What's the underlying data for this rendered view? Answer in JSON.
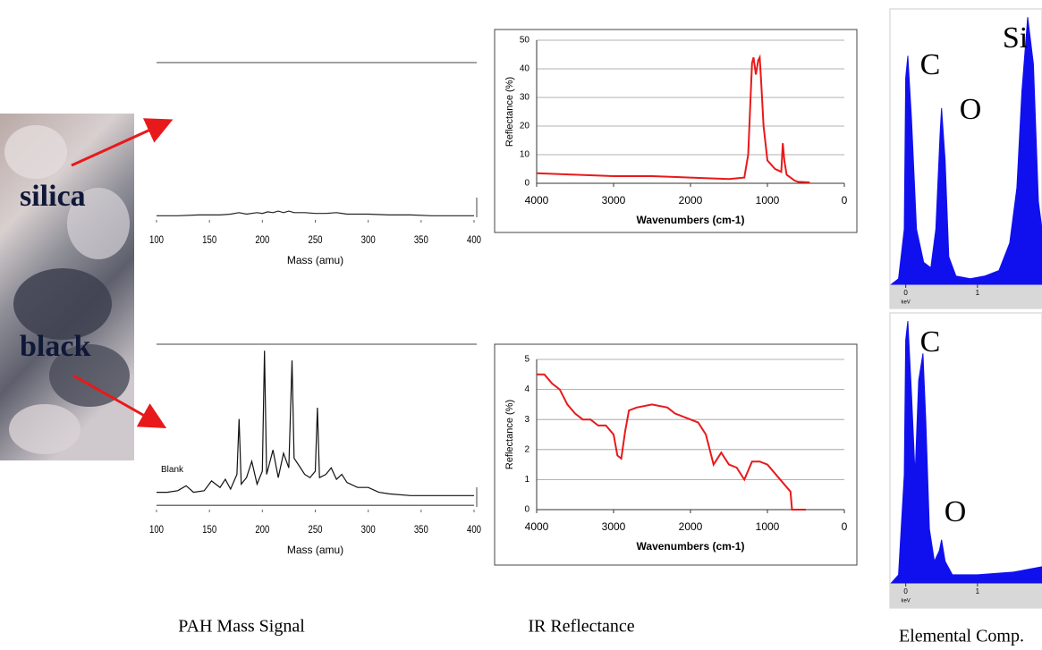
{
  "labels": [
    "silica",
    "black"
  ],
  "captions": [
    "PAH Mass Signal",
    "IR Reflectance",
    "Elemental Comp."
  ],
  "chart_data": [
    {
      "type": "line",
      "x_label": "Mass (amu)",
      "xlim": [
        100,
        400
      ],
      "xticks": [
        100,
        150,
        200,
        250,
        300,
        350,
        400
      ],
      "ylim": [
        0,
        100
      ],
      "color": "#222222",
      "x": [
        100,
        120,
        140,
        160,
        170,
        178,
        185,
        195,
        200,
        205,
        210,
        215,
        220,
        225,
        230,
        240,
        250,
        260,
        270,
        280,
        290,
        300,
        320,
        340,
        360,
        380,
        400
      ],
      "values": [
        1,
        1,
        1.5,
        1.5,
        2,
        3,
        2,
        3,
        2.5,
        3.5,
        3,
        4,
        3,
        4,
        3,
        3,
        2.5,
        2.5,
        3,
        2,
        2,
        2,
        1.5,
        1.5,
        1,
        1,
        1
      ]
    },
    {
      "type": "line",
      "x_label": "Wavenumbers (cm-1)",
      "y_label": "Reflectance (%)",
      "xlim": [
        4000,
        0
      ],
      "xticks": [
        4000,
        3000,
        2000,
        1000,
        0
      ],
      "ylim": [
        0,
        50
      ],
      "yticks": [
        0,
        10,
        20,
        30,
        40,
        50
      ],
      "grid": true,
      "color": "#e8191a",
      "x": [
        4000,
        3500,
        3000,
        2500,
        2000,
        1500,
        1300,
        1250,
        1200,
        1180,
        1150,
        1120,
        1100,
        1080,
        1050,
        1000,
        900,
        820,
        800,
        780,
        750,
        700,
        650,
        600,
        450
      ],
      "values": [
        3.5,
        3,
        2.5,
        2.5,
        2,
        1.5,
        2,
        10,
        42,
        44,
        38,
        43,
        44,
        35,
        20,
        8,
        5,
        4,
        14,
        8,
        3,
        2,
        1,
        0.5,
        0.3
      ]
    },
    {
      "type": "area",
      "x_label": "keV",
      "xlim": [
        -0.22,
        1.9
      ],
      "xticks": [
        0,
        1
      ],
      "ylim": [
        0,
        100
      ],
      "color": "#1010ee",
      "annotations": [
        "C",
        "O",
        "Si"
      ],
      "x": [
        -0.2,
        -0.1,
        -0.02,
        0,
        0.03,
        0.08,
        0.15,
        0.25,
        0.35,
        0.42,
        0.48,
        0.5,
        0.55,
        0.6,
        0.7,
        0.9,
        1.1,
        1.3,
        1.45,
        1.55,
        1.62,
        1.7,
        1.78,
        1.85,
        1.9
      ],
      "values": [
        0,
        2,
        20,
        75,
        83,
        60,
        20,
        8,
        6,
        20,
        55,
        64,
        45,
        10,
        3,
        2,
        3,
        5,
        15,
        35,
        70,
        97,
        80,
        30,
        20
      ]
    },
    {
      "type": "line",
      "x_label": "Mass (amu)",
      "xlim": [
        100,
        400
      ],
      "xticks": [
        100,
        150,
        200,
        250,
        300,
        350,
        400
      ],
      "ylim": [
        0,
        100
      ],
      "x": [
        100,
        110,
        120,
        128,
        135,
        145,
        152,
        160,
        165,
        170,
        176,
        178,
        180,
        185,
        190,
        195,
        200,
        202,
        204,
        210,
        215,
        220,
        225,
        228,
        230,
        235,
        240,
        245,
        250,
        252,
        254,
        260,
        265,
        270,
        275,
        280,
        290,
        300,
        310,
        320,
        340,
        360,
        380,
        400
      ],
      "series": [
        {
          "name": "Blank",
          "color": "#444444",
          "values": [
            1,
            1,
            1,
            1,
            1,
            1,
            1,
            1,
            1,
            1,
            1,
            1,
            1,
            1,
            1,
            1,
            1,
            1,
            1,
            1,
            1,
            1,
            1,
            1,
            1,
            1,
            1,
            1,
            1,
            1,
            1,
            1,
            1,
            1,
            1,
            1,
            1,
            1,
            1,
            1,
            1,
            1,
            1,
            1
          ]
        },
        {
          "color": "#111111",
          "values": [
            9,
            9,
            10,
            13,
            9,
            10,
            16,
            12,
            17,
            11,
            20,
            54,
            14,
            18,
            28,
            14,
            22,
            96,
            20,
            35,
            18,
            33,
            24,
            90,
            30,
            25,
            20,
            18,
            22,
            61,
            18,
            20,
            24,
            17,
            20,
            15,
            12,
            12,
            9,
            8,
            7,
            7,
            7,
            7
          ]
        }
      ]
    },
    {
      "type": "line",
      "x_label": "Wavenumbers (cm-1)",
      "y_label": "Reflectance (%)",
      "xlim": [
        4000,
        0
      ],
      "xticks": [
        4000,
        3000,
        2000,
        1000,
        0
      ],
      "ylim": [
        0,
        5
      ],
      "yticks": [
        0,
        1,
        2,
        3,
        4,
        5
      ],
      "grid": true,
      "color": "#e8191a",
      "x": [
        4000,
        3900,
        3800,
        3700,
        3600,
        3500,
        3400,
        3300,
        3200,
        3100,
        3000,
        2950,
        2900,
        2850,
        2800,
        2700,
        2500,
        2300,
        2200,
        2000,
        1900,
        1800,
        1700,
        1600,
        1550,
        1500,
        1400,
        1300,
        1200,
        1100,
        1000,
        900,
        800,
        700,
        680,
        500
      ],
      "values": [
        4.5,
        4.5,
        4.2,
        4,
        3.5,
        3.2,
        3,
        3,
        2.8,
        2.8,
        2.5,
        1.8,
        1.7,
        2.6,
        3.3,
        3.4,
        3.5,
        3.4,
        3.2,
        3,
        2.9,
        2.5,
        1.5,
        1.9,
        1.7,
        1.5,
        1.4,
        1,
        1.6,
        1.6,
        1.5,
        1.2,
        0.9,
        0.6,
        0,
        0
      ]
    },
    {
      "type": "area",
      "x_label": "keV",
      "xlim": [
        -0.22,
        1.9
      ],
      "xticks": [
        0,
        1
      ],
      "ylim": [
        0,
        100
      ],
      "color": "#1010ee",
      "annotations": [
        "C",
        "O"
      ],
      "x": [
        -0.2,
        -0.1,
        -0.02,
        0,
        0.03,
        0.08,
        0.13,
        0.18,
        0.24,
        0.28,
        0.33,
        0.4,
        0.47,
        0.5,
        0.55,
        0.65,
        1,
        1.5,
        1.9
      ],
      "values": [
        0,
        3,
        40,
        90,
        97,
        70,
        40,
        75,
        85,
        60,
        20,
        8,
        12,
        16,
        8,
        3,
        3,
        4,
        6
      ]
    }
  ]
}
